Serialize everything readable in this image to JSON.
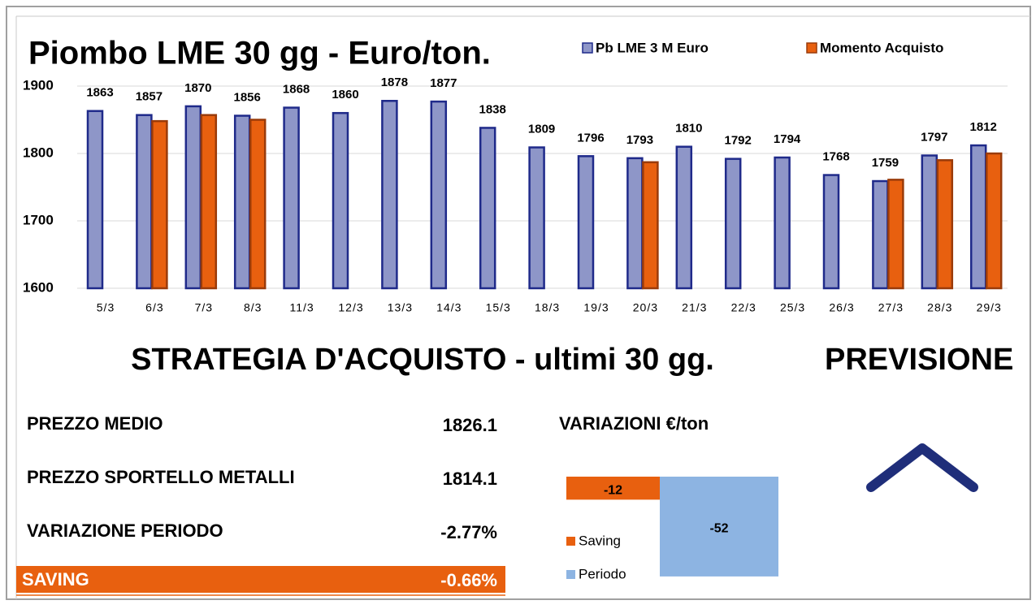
{
  "chart_data": [
    {
      "type": "bar",
      "title": "Piombo  LME 30 gg - Euro/ton.",
      "categories": [
        "5/3",
        "6/3",
        "7/3",
        "8/3",
        "11/3",
        "12/3",
        "13/3",
        "14/3",
        "15/3",
        "18/3",
        "19/3",
        "20/3",
        "21/3",
        "22/3",
        "25/3",
        "26/3",
        "27/3",
        "28/3",
        "29/3"
      ],
      "series": [
        {
          "name": "Pb LME 3 M Euro",
          "color": "#8e96c8",
          "values": [
            1863,
            1857,
            1870,
            1856,
            1868,
            1860,
            1878,
            1877,
            1838,
            1809,
            1796,
            1793,
            1810,
            1792,
            1794,
            1768,
            1759,
            1797,
            1812
          ]
        },
        {
          "name": "Momento Acquisto",
          "color": "#e8600f",
          "values": [
            null,
            1848,
            1857,
            1850,
            null,
            null,
            null,
            null,
            null,
            null,
            null,
            1787,
            null,
            null,
            null,
            null,
            1761,
            1790,
            1800
          ]
        }
      ],
      "ylim": [
        1600,
        1900
      ],
      "yticks": [
        1600,
        1700,
        1800,
        1900
      ],
      "grid": true,
      "legend": "top"
    },
    {
      "type": "bar",
      "title": "VARIAZIONI €/ton",
      "series": [
        {
          "name": "Saving",
          "color": "#e8600f",
          "values": [
            -12
          ]
        },
        {
          "name": "Periodo",
          "color": "#8db4e2",
          "values": [
            -52
          ]
        }
      ],
      "ylim": [
        -55,
        0
      ],
      "legend": "bottom-left"
    }
  ],
  "strategy": {
    "title": "STRATEGIA D'ACQUISTO - ultimi 30 gg.",
    "rows": [
      [
        "PREZZO MEDIO",
        "1826.1"
      ],
      [
        "PREZZO SPORTELLO METALLI",
        "1814.1"
      ],
      [
        "VARIAZIONE PERIODO",
        "-2.77%"
      ],
      [
        "SAVING",
        "-0.66%"
      ]
    ]
  },
  "forecast": {
    "title": "PREVISIONE"
  }
}
